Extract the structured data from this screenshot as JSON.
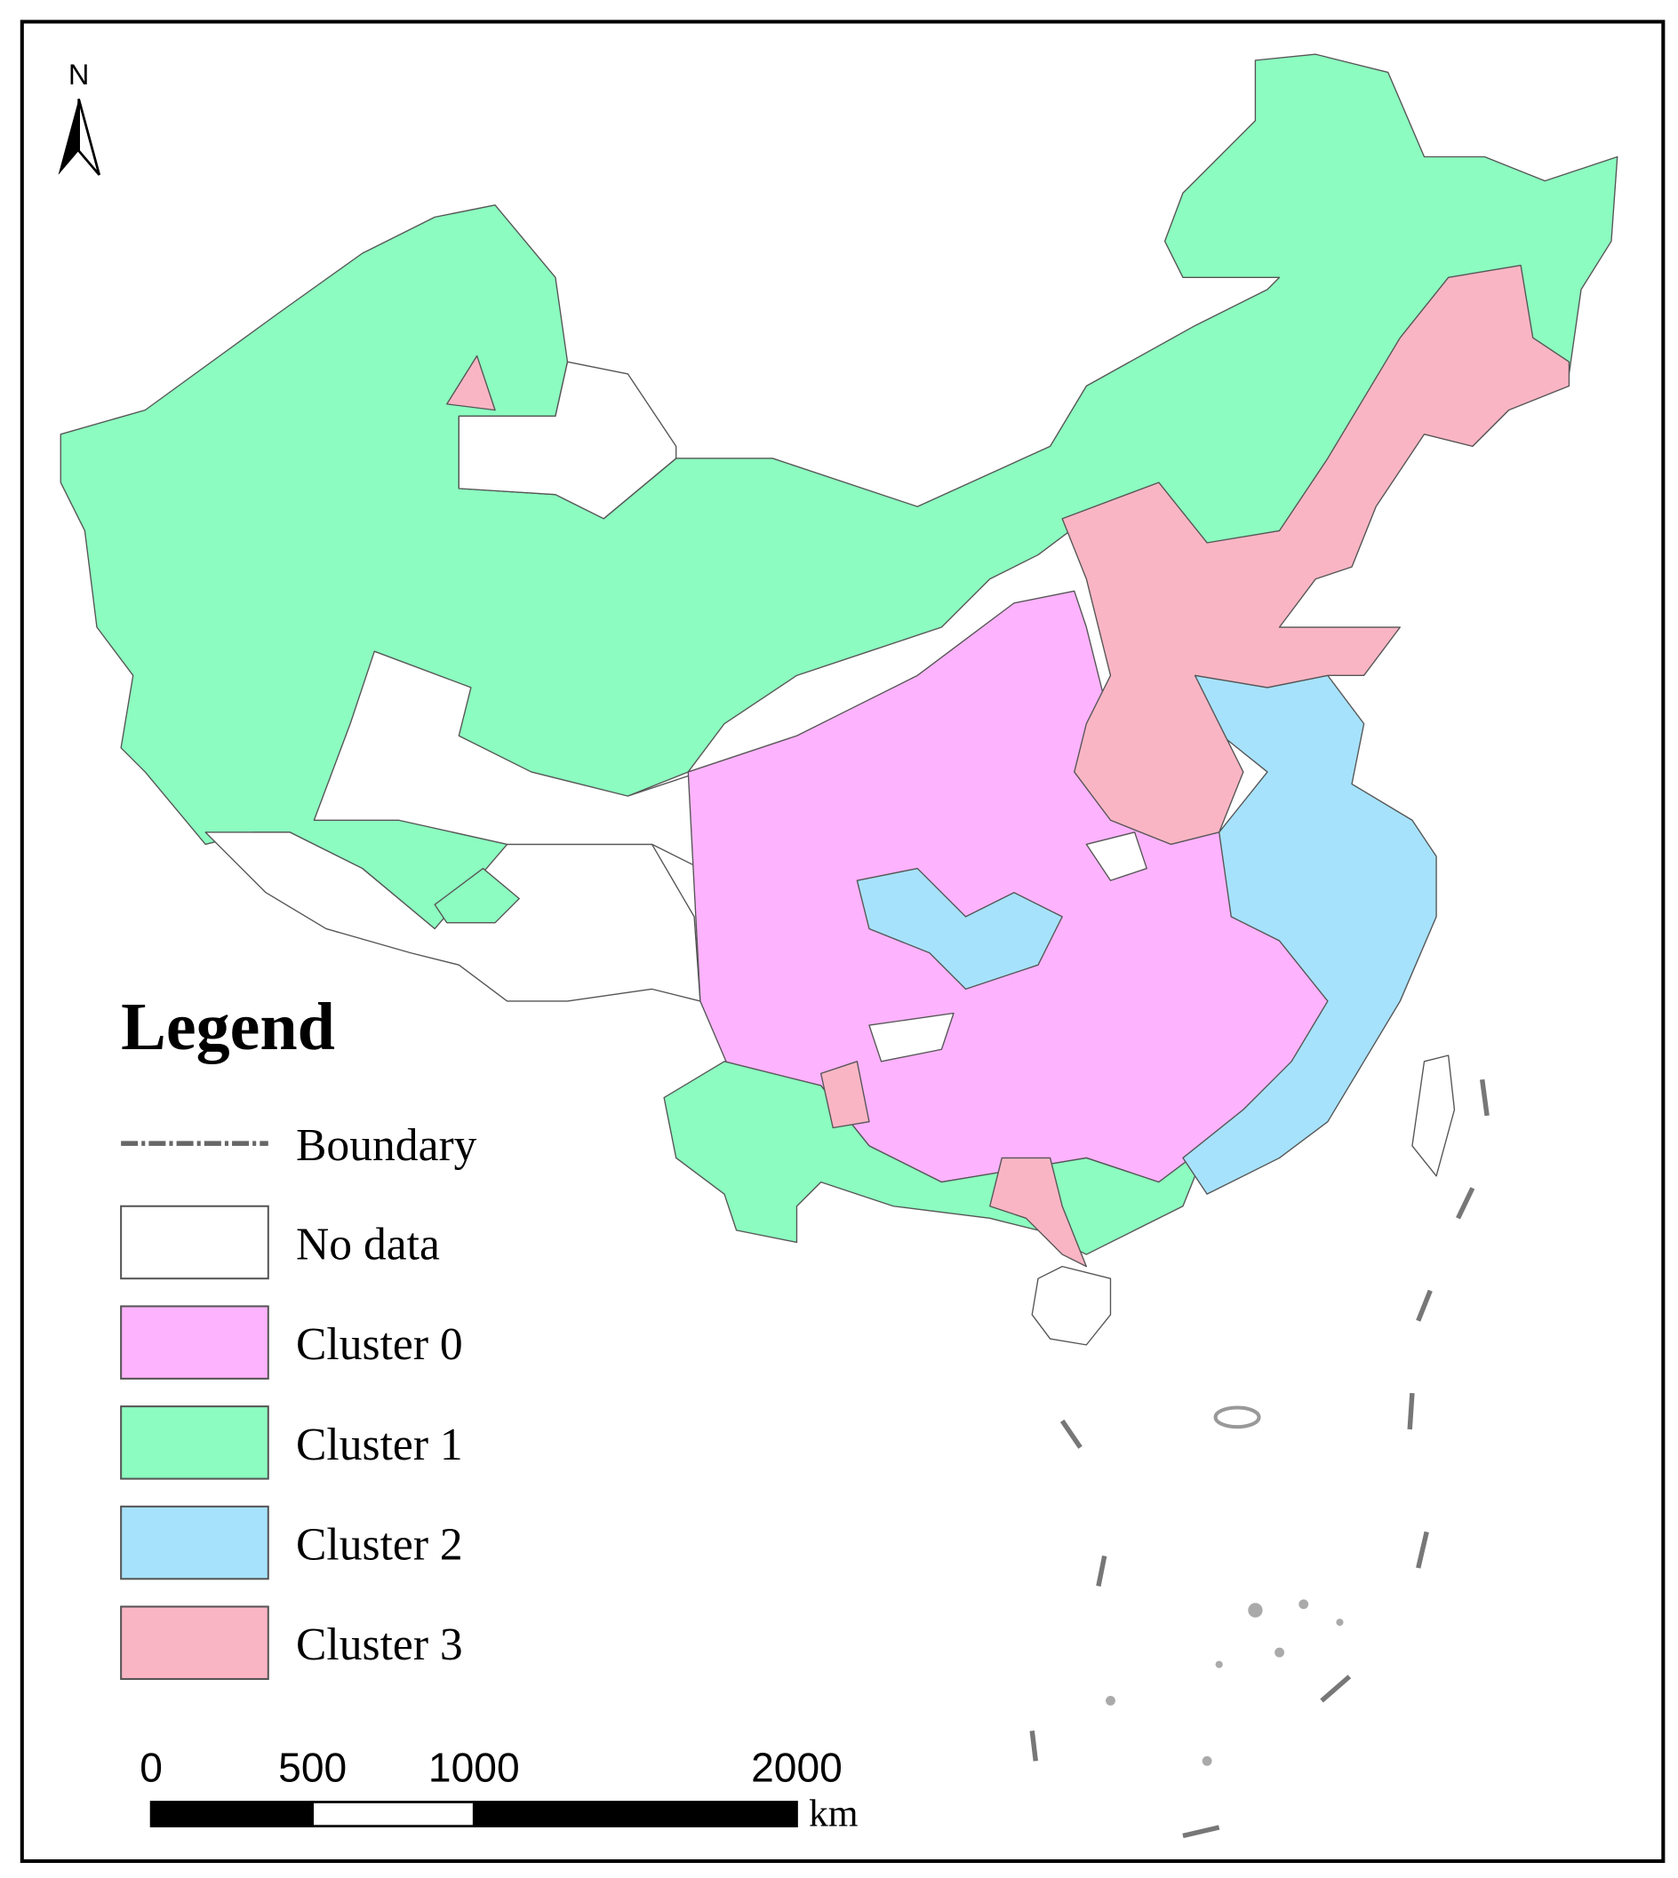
{
  "north": "N",
  "legend": {
    "title": "Legend",
    "boundary": "Boundary",
    "items": [
      {
        "label": "No data",
        "color": "#ffffff"
      },
      {
        "label": "Cluster 0",
        "color": "#fdb3fd"
      },
      {
        "label": "Cluster 1",
        "color": "#8cfcc0"
      },
      {
        "label": "Cluster 2",
        "color": "#a6e2fb"
      },
      {
        "label": "Cluster 3",
        "color": "#fab5c4"
      }
    ]
  },
  "scale": {
    "ticks": [
      0,
      500,
      1000,
      2000
    ],
    "unit": "km"
  }
}
